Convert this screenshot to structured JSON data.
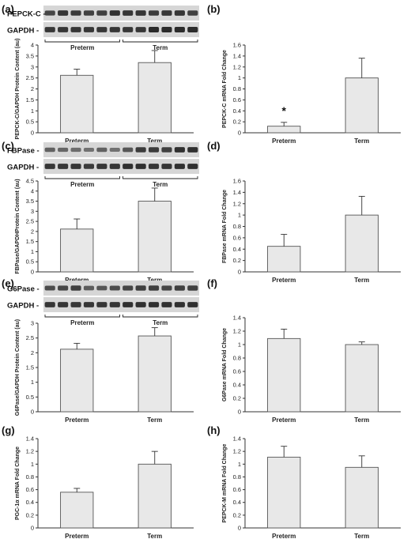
{
  "chart_data": [
    {
      "type": "bar",
      "panel_label": "(a)",
      "blots": [
        {
          "label": "PEPCK-C -",
          "lanes": [
            0.75,
            0.9,
            0.85,
            0.8,
            0.8,
            0.95,
            0.9,
            0.9,
            0.85,
            0.9,
            0.9,
            0.8
          ]
        },
        {
          "label": "GAPDH -",
          "lanes": [
            0.9,
            0.9,
            0.9,
            0.9,
            0.9,
            0.9,
            0.9,
            0.9,
            1.0,
            1.0,
            1.0,
            1.0
          ]
        }
      ],
      "group_labels": [
        "Preterm",
        "Term"
      ],
      "ylabel": "PEPCK-C/GAPDH Protein Content (au)",
      "categories": [
        "Preterm",
        "Term"
      ],
      "values": [
        2.62,
        3.2
      ],
      "errors": [
        0.28,
        0.55
      ],
      "ylim": [
        0,
        4
      ],
      "yticks": [
        "0",
        "0.5",
        "1",
        "1.5",
        "2",
        "2.5",
        "3",
        "3.5",
        "4"
      ],
      "annotations": []
    },
    {
      "type": "bar",
      "panel_label": "(b)",
      "ylabel": "PEPCK-C mRNA Fold Change",
      "categories": [
        "Preterm",
        "Term"
      ],
      "values": [
        0.12,
        1.0
      ],
      "errors": [
        0.07,
        0.36
      ],
      "ylim": [
        0,
        1.6
      ],
      "yticks": [
        "0",
        "0.2",
        "0.4",
        "0.6",
        "0.8",
        "1",
        "1.2",
        "1.4",
        "1.6"
      ],
      "annotations": [
        {
          "text": "*",
          "category": "Preterm"
        }
      ]
    },
    {
      "type": "bar",
      "panel_label": "(c)",
      "blots": [
        {
          "label": "FBPase -",
          "lanes": [
            0.5,
            0.45,
            0.4,
            0.35,
            0.5,
            0.35,
            0.6,
            0.85,
            0.85,
            0.8,
            0.95,
            0.95
          ]
        },
        {
          "label": "GAPDH -",
          "lanes": [
            0.9,
            0.9,
            0.9,
            0.85,
            0.9,
            0.9,
            0.95,
            0.95,
            0.9,
            0.9,
            0.95,
            0.95
          ]
        }
      ],
      "group_labels": [
        "Preterm",
        "Term"
      ],
      "ylabel": "FBPase/GAPDHProtein Content (au)",
      "categories": [
        "Preterm",
        "Term"
      ],
      "values": [
        2.12,
        3.5
      ],
      "errors": [
        0.5,
        0.65
      ],
      "ylim": [
        0,
        4.5
      ],
      "yticks": [
        "0",
        "0.5",
        "1",
        "1.5",
        "2",
        "2.5",
        "3",
        "3.5",
        "4",
        "4.5"
      ],
      "annotations": []
    },
    {
      "type": "bar",
      "panel_label": "(d)",
      "ylabel": "FBPase mRNA Fold Change",
      "categories": [
        "Preterm",
        "Term"
      ],
      "values": [
        0.45,
        1.0
      ],
      "errors": [
        0.21,
        0.33
      ],
      "ylim": [
        0,
        1.6
      ],
      "yticks": [
        "0",
        "0.2",
        "0.4",
        "0.6",
        "0.8",
        "1",
        "1.2",
        "1.4",
        "1.6"
      ],
      "annotations": []
    },
    {
      "type": "bar",
      "panel_label": "(e)",
      "blots": [
        {
          "label": "G6Pase -",
          "lanes": [
            0.7,
            0.75,
            0.8,
            0.55,
            0.6,
            0.7,
            0.75,
            0.8,
            0.8,
            0.75,
            0.8,
            0.8
          ]
        },
        {
          "label": "GAPDH -",
          "lanes": [
            0.9,
            0.9,
            0.9,
            0.9,
            0.9,
            0.9,
            0.95,
            0.95,
            0.95,
            0.95,
            0.95,
            0.95
          ]
        }
      ],
      "group_labels": [
        "Preterm",
        "Term"
      ],
      "ylabel": "G6Pase/GAPDH Protein Content (au)",
      "categories": [
        "Preterm",
        "Term"
      ],
      "values": [
        2.12,
        2.57
      ],
      "errors": [
        0.2,
        0.28
      ],
      "ylim": [
        0,
        3
      ],
      "yticks": [
        "0",
        "0.5",
        "1",
        "1.5",
        "2",
        "2.5",
        "3"
      ],
      "annotations": []
    },
    {
      "type": "bar",
      "panel_label": "(f)",
      "ylabel": "G6Pase mRNA Fold Change",
      "categories": [
        "Preterm",
        "Term"
      ],
      "values": [
        1.09,
        1.0
      ],
      "errors": [
        0.14,
        0.04
      ],
      "ylim": [
        0,
        1.4
      ],
      "yticks": [
        "0",
        "0.2",
        "0.4",
        "0.6",
        "0.8",
        "1",
        "1.2",
        "1.4"
      ],
      "annotations": []
    },
    {
      "type": "bar",
      "panel_label": "(g)",
      "ylabel": "PGC-1α mRNA Fold Change",
      "categories": [
        "Preterm",
        "Term"
      ],
      "values": [
        0.56,
        1.0
      ],
      "errors": [
        0.06,
        0.2
      ],
      "ylim": [
        0,
        1.4
      ],
      "yticks": [
        "0",
        "0.2",
        "0.4",
        "0.6",
        "0.8",
        "1",
        "1.2",
        "1.4"
      ],
      "annotations": []
    },
    {
      "type": "bar",
      "panel_label": "(h)",
      "ylabel": "PEPCK-M mRNA Fold Change",
      "categories": [
        "Preterm",
        "Term"
      ],
      "values": [
        1.11,
        0.95
      ],
      "errors": [
        0.17,
        0.18
      ],
      "ylim": [
        0,
        1.4
      ],
      "yticks": [
        "0",
        "0.2",
        "0.4",
        "0.6",
        "0.8",
        "1",
        "1.2",
        "1.4"
      ],
      "annotations": []
    }
  ],
  "colors": {
    "bar_fill": "#e8e8e8",
    "bar_stroke": "#555555",
    "axis": "#333333",
    "blot_band": "#222222",
    "blot_background": "#d6d6d6"
  }
}
